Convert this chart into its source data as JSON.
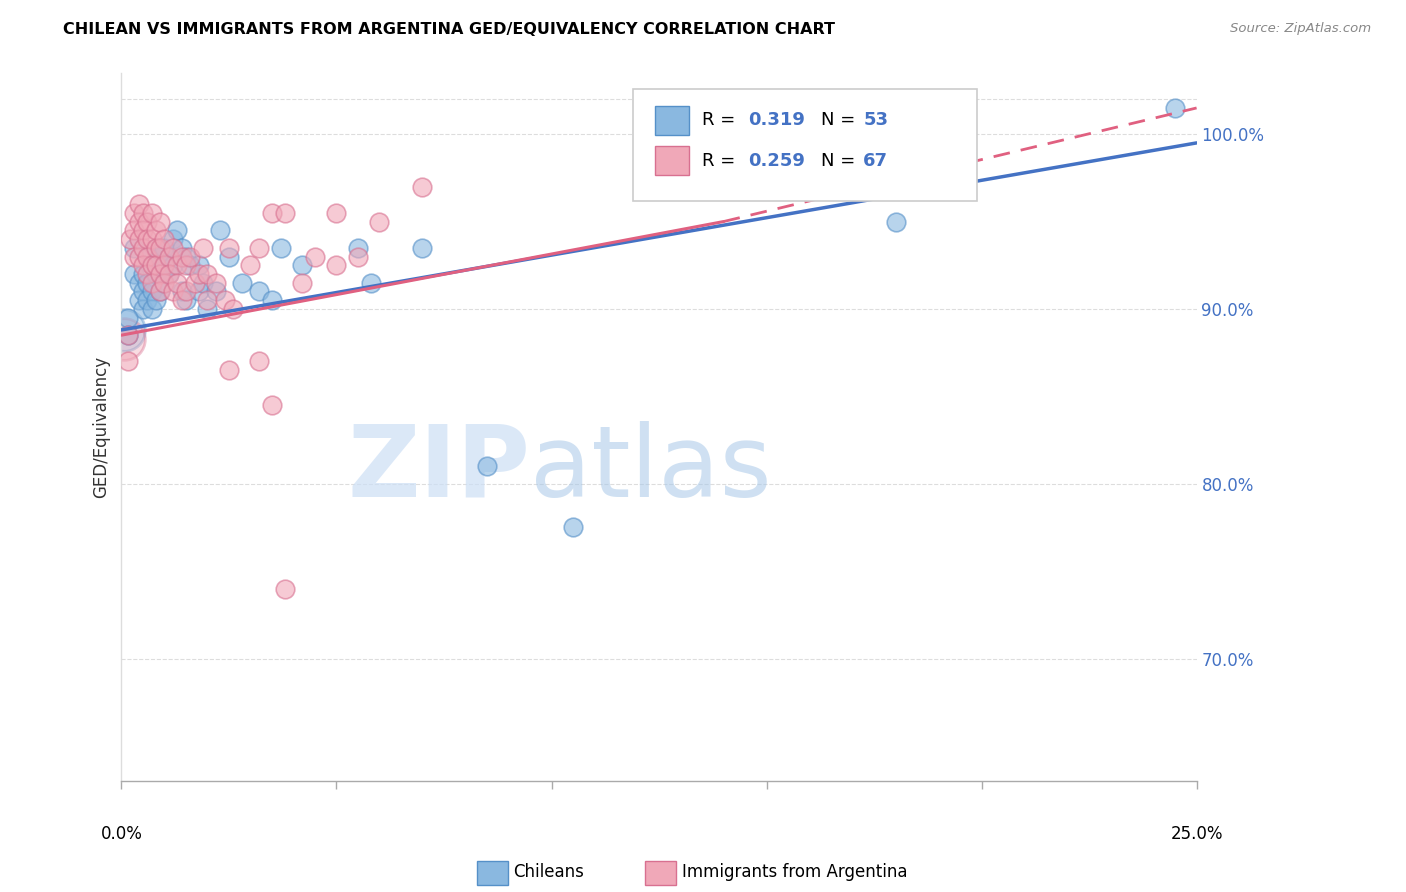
{
  "title": "CHILEAN VS IMMIGRANTS FROM ARGENTINA GED/EQUIVALENCY CORRELATION CHART",
  "source": "Source: ZipAtlas.com",
  "ylabel": "GED/Equivalency",
  "yticks": [
    70.0,
    80.0,
    90.0,
    100.0
  ],
  "ytick_labels": [
    "70.0%",
    "80.0%",
    "90.0%",
    "100.0%"
  ],
  "xlim": [
    0.0,
    25.0
  ],
  "ylim": [
    63.0,
    103.5
  ],
  "color_blue": "#8ab8e0",
  "color_pink": "#f0a8b8",
  "color_blue_edge": "#5590c8",
  "color_pink_edge": "#d87090",
  "color_blue_line": "#4472c4",
  "color_pink_line": "#e06080",
  "watermark_zip": "ZIP",
  "watermark_atlas": "atlas",
  "blue_line_x0": 0.0,
  "blue_line_y0": 88.8,
  "blue_line_x1": 25.0,
  "blue_line_y1": 99.5,
  "pink_line_x0": 0.0,
  "pink_line_y0": 88.5,
  "pink_line_x1": 25.0,
  "pink_line_y1": 101.5,
  "pink_line_solid_x1": 14.0,
  "pink_line_solid_y1": 95.0,
  "blue_scatter": [
    [
      0.3,
      93.5
    ],
    [
      0.3,
      92.0
    ],
    [
      0.4,
      91.5
    ],
    [
      0.4,
      90.5
    ],
    [
      0.5,
      92.0
    ],
    [
      0.5,
      91.0
    ],
    [
      0.5,
      90.0
    ],
    [
      0.6,
      93.0
    ],
    [
      0.6,
      91.5
    ],
    [
      0.6,
      90.5
    ],
    [
      0.7,
      92.5
    ],
    [
      0.7,
      91.0
    ],
    [
      0.7,
      90.0
    ],
    [
      0.8,
      93.5
    ],
    [
      0.8,
      92.0
    ],
    [
      0.8,
      90.5
    ],
    [
      0.9,
      93.0
    ],
    [
      0.9,
      92.0
    ],
    [
      0.9,
      91.0
    ],
    [
      1.0,
      93.5
    ],
    [
      1.0,
      92.5
    ],
    [
      1.0,
      91.5
    ],
    [
      1.1,
      93.0
    ],
    [
      1.1,
      92.0
    ],
    [
      1.2,
      94.0
    ],
    [
      1.2,
      92.5
    ],
    [
      1.3,
      94.5
    ],
    [
      1.4,
      93.5
    ],
    [
      1.4,
      91.0
    ],
    [
      1.5,
      93.0
    ],
    [
      1.5,
      90.5
    ],
    [
      1.6,
      92.5
    ],
    [
      1.8,
      92.5
    ],
    [
      1.8,
      91.0
    ],
    [
      1.9,
      91.5
    ],
    [
      2.0,
      90.0
    ],
    [
      2.2,
      91.0
    ],
    [
      2.3,
      94.5
    ],
    [
      2.5,
      93.0
    ],
    [
      2.8,
      91.5
    ],
    [
      3.2,
      91.0
    ],
    [
      3.5,
      90.5
    ],
    [
      3.7,
      93.5
    ],
    [
      4.2,
      92.5
    ],
    [
      5.5,
      93.5
    ],
    [
      5.8,
      91.5
    ],
    [
      7.0,
      93.5
    ],
    [
      8.5,
      81.0
    ],
    [
      10.5,
      77.5
    ],
    [
      18.0,
      95.0
    ],
    [
      24.5,
      101.5
    ],
    [
      0.15,
      89.5
    ],
    [
      0.15,
      88.5
    ]
  ],
  "pink_scatter": [
    [
      0.2,
      94.0
    ],
    [
      0.3,
      95.5
    ],
    [
      0.3,
      94.5
    ],
    [
      0.3,
      93.0
    ],
    [
      0.4,
      96.0
    ],
    [
      0.4,
      95.0
    ],
    [
      0.4,
      94.0
    ],
    [
      0.4,
      93.0
    ],
    [
      0.5,
      95.5
    ],
    [
      0.5,
      94.5
    ],
    [
      0.5,
      93.5
    ],
    [
      0.5,
      92.5
    ],
    [
      0.6,
      95.0
    ],
    [
      0.6,
      94.0
    ],
    [
      0.6,
      93.0
    ],
    [
      0.6,
      92.0
    ],
    [
      0.7,
      95.5
    ],
    [
      0.7,
      94.0
    ],
    [
      0.7,
      92.5
    ],
    [
      0.7,
      91.5
    ],
    [
      0.8,
      94.5
    ],
    [
      0.8,
      93.5
    ],
    [
      0.8,
      92.5
    ],
    [
      0.9,
      95.0
    ],
    [
      0.9,
      93.5
    ],
    [
      0.9,
      92.0
    ],
    [
      0.9,
      91.0
    ],
    [
      1.0,
      94.0
    ],
    [
      1.0,
      92.5
    ],
    [
      1.0,
      91.5
    ],
    [
      1.1,
      93.0
    ],
    [
      1.1,
      92.0
    ],
    [
      1.2,
      93.5
    ],
    [
      1.2,
      91.0
    ],
    [
      1.3,
      92.5
    ],
    [
      1.3,
      91.5
    ],
    [
      1.4,
      93.0
    ],
    [
      1.4,
      90.5
    ],
    [
      1.5,
      92.5
    ],
    [
      1.5,
      91.0
    ],
    [
      1.6,
      93.0
    ],
    [
      1.7,
      91.5
    ],
    [
      1.8,
      92.0
    ],
    [
      1.9,
      93.5
    ],
    [
      2.0,
      92.0
    ],
    [
      2.0,
      90.5
    ],
    [
      2.2,
      91.5
    ],
    [
      2.4,
      90.5
    ],
    [
      2.5,
      93.5
    ],
    [
      2.6,
      90.0
    ],
    [
      3.0,
      92.5
    ],
    [
      3.2,
      93.5
    ],
    [
      3.5,
      95.5
    ],
    [
      3.8,
      95.5
    ],
    [
      4.5,
      93.0
    ],
    [
      5.0,
      95.5
    ],
    [
      5.0,
      92.5
    ],
    [
      5.5,
      93.0
    ],
    [
      6.0,
      95.0
    ],
    [
      7.0,
      97.0
    ],
    [
      2.5,
      86.5
    ],
    [
      3.2,
      87.0
    ],
    [
      3.5,
      84.5
    ],
    [
      3.8,
      74.0
    ],
    [
      4.2,
      91.5
    ],
    [
      0.15,
      88.5
    ],
    [
      0.15,
      87.0
    ]
  ],
  "large_blue_x": 0.05,
  "large_blue_y": 88.8,
  "large_blue_size": 900
}
